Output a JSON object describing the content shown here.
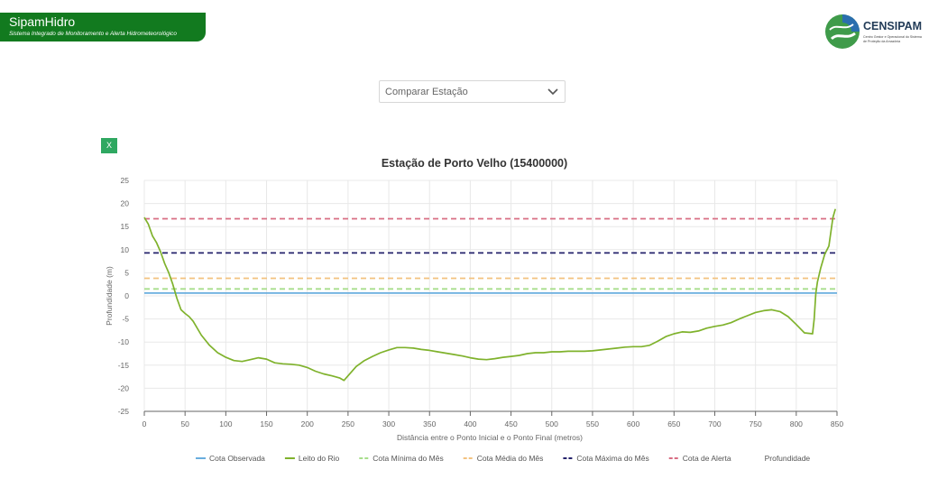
{
  "header": {
    "app_title": "SipamHidro",
    "app_subtitle": "Sistema Integrado de Monitoramento e Alerta Hidrometeorológico",
    "logo_name": "CENSIPAM",
    "logo_tagline": "Centro Gestor e Operacional do Sistema de Proteção da Amazônia"
  },
  "compare": {
    "placeholder": "Comparar Estação"
  },
  "close_label": "X",
  "colors": {
    "brand_green": "#127a1f",
    "button_green": "#2fa861",
    "cota_observada": "#69aede",
    "leito_do_rio": "#7fb22c",
    "cota_minima": "#a8de8c",
    "cota_media": "#f3c27f",
    "cota_maxima": "#25236c",
    "cota_alerta": "#d86e84"
  },
  "chart_data": {
    "type": "line",
    "title": "Estação de Porto Velho (15400000)",
    "xlabel": "Distância entre o Ponto Inicial e o Ponto Final (metros)",
    "ylabel": "Profundidade (m)",
    "xlim": [
      0,
      850
    ],
    "ylim": [
      -25,
      25
    ],
    "x_ticks": [
      0,
      50,
      100,
      150,
      200,
      250,
      300,
      350,
      400,
      450,
      500,
      550,
      600,
      650,
      700,
      750,
      800,
      850
    ],
    "y_ticks": [
      25,
      20,
      15,
      10,
      5,
      0,
      -5,
      -10,
      -15,
      -20,
      -25
    ],
    "grid": true,
    "legend_position": "bottom",
    "series": [
      {
        "name": "Cota Observada",
        "style": "solid",
        "color": "#69aede",
        "x": [
          0,
          850
        ],
        "y": [
          0.6,
          0.6
        ]
      },
      {
        "name": "Leito do Rio",
        "style": "solid",
        "color": "#7fb22c",
        "x": [
          0,
          5,
          10,
          15,
          20,
          25,
          30,
          35,
          40,
          45,
          50,
          55,
          60,
          70,
          80,
          90,
          100,
          110,
          120,
          130,
          140,
          150,
          160,
          170,
          180,
          190,
          200,
          210,
          220,
          230,
          240,
          245,
          250,
          260,
          270,
          280,
          290,
          300,
          310,
          320,
          330,
          340,
          350,
          360,
          370,
          380,
          390,
          400,
          410,
          420,
          430,
          440,
          450,
          460,
          470,
          480,
          490,
          500,
          510,
          520,
          530,
          540,
          550,
          560,
          570,
          580,
          590,
          600,
          610,
          620,
          630,
          640,
          650,
          660,
          670,
          680,
          690,
          700,
          710,
          720,
          730,
          740,
          750,
          760,
          770,
          780,
          790,
          800,
          810,
          820,
          822,
          824,
          826,
          830,
          835,
          840,
          845,
          848
        ],
        "y": [
          17,
          15.5,
          13,
          11.5,
          9.5,
          7,
          5,
          2.5,
          -0.5,
          -3,
          -3.8,
          -4.5,
          -5.5,
          -8.5,
          -10.7,
          -12.3,
          -13.3,
          -14,
          -14.2,
          -13.8,
          -13.4,
          -13.7,
          -14.5,
          -14.7,
          -14.8,
          -15,
          -15.5,
          -16.3,
          -16.9,
          -17.3,
          -17.8,
          -18.3,
          -17.3,
          -15.3,
          -14,
          -13.1,
          -12.3,
          -11.7,
          -11.2,
          -11.2,
          -11.3,
          -11.6,
          -11.8,
          -12.1,
          -12.4,
          -12.7,
          -13,
          -13.4,
          -13.7,
          -13.8,
          -13.6,
          -13.3,
          -13.1,
          -12.9,
          -12.5,
          -12.3,
          -12.3,
          -12.1,
          -12.1,
          -12.0,
          -12.0,
          -12.0,
          -11.9,
          -11.7,
          -11.5,
          -11.3,
          -11.1,
          -11.0,
          -11.0,
          -10.7,
          -9.8,
          -8.8,
          -8.2,
          -7.8,
          -7.9,
          -7.6,
          -7,
          -6.6,
          -6.3,
          -5.8,
          -5.0,
          -4.3,
          -3.6,
          -3.2,
          -3.0,
          -3.4,
          -4.5,
          -6.2,
          -8.0,
          -8.2,
          -5,
          0.5,
          3,
          6,
          9,
          10.8,
          17,
          18.8
        ]
      },
      {
        "name": "Cota Mínima do Mês",
        "style": "dashed",
        "color": "#a8de8c",
        "x": [
          0,
          850
        ],
        "y": [
          1.5,
          1.5
        ]
      },
      {
        "name": "Cota Média do Mês",
        "style": "dashed",
        "color": "#f3c27f",
        "x": [
          0,
          850
        ],
        "y": [
          3.8,
          3.8
        ]
      },
      {
        "name": "Cota Máxima do Mês",
        "style": "dashed",
        "color": "#25236c",
        "x": [
          0,
          850
        ],
        "y": [
          9.3,
          9.3
        ]
      },
      {
        "name": "Cota de Alerta",
        "style": "dashed",
        "color": "#d86e84",
        "x": [
          0,
          850
        ],
        "y": [
          16.7,
          16.7
        ]
      },
      {
        "name": "Profundidade",
        "style": "none",
        "color": "",
        "x": [],
        "y": []
      }
    ]
  }
}
